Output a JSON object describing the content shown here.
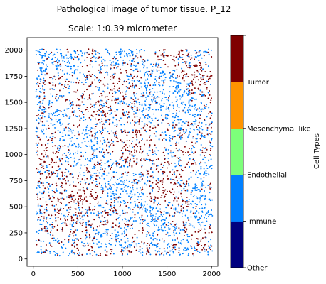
{
  "chart_data": {
    "type": "scatter",
    "title": "Pathological image of tumor tissue. P_12",
    "subtitle": "Scale: 1:0.39 micrometer",
    "xlim": [
      -70,
      2070
    ],
    "ylim": [
      2120,
      -70
    ],
    "y_inverted": true,
    "x_ticks": [
      0,
      500,
      1000,
      1500,
      2000
    ],
    "y_ticks": [
      0,
      250,
      500,
      750,
      1000,
      1250,
      1500,
      1750,
      2000
    ],
    "x_tick_labels": [
      "0",
      "500",
      "1000",
      "1500",
      "2000"
    ],
    "y_tick_labels": [
      "0",
      "250",
      "500",
      "750",
      "1000",
      "1250",
      "1500",
      "1750",
      "2000"
    ],
    "grid": false,
    "point_extent": {
      "x": [
        30,
        2010
      ],
      "y": [
        30,
        2010
      ]
    },
    "series_summary": [
      {
        "category": "Tumor",
        "color": "#7f0000",
        "approx_count": 3400
      },
      {
        "category": "Immune",
        "color": "#0080ff",
        "approx_count": 3700
      }
    ],
    "dense_regions": [
      {
        "category": "Immune",
        "x_range": [
          1200,
          1750
        ],
        "y_range": [
          1300,
          1700
        ]
      },
      {
        "category": "Immune",
        "x_range": [
          1750,
          2000
        ],
        "y_range": [
          300,
          900
        ]
      },
      {
        "category": "Immune",
        "x_range": [
          50,
          600
        ],
        "y_range": [
          1750,
          2000
        ]
      },
      {
        "category": "Immune",
        "x_range": [
          700,
          1100
        ],
        "y_range": [
          100,
          300
        ]
      }
    ],
    "colorbar": {
      "label": "Cell Types",
      "categories": [
        "Other",
        "Immune",
        "Endothelial",
        "Mesenchymal-like",
        "Tumor"
      ],
      "colors": [
        "#00007f",
        "#0080ff",
        "#7dff7a",
        "#ff9400",
        "#7f0000"
      ],
      "tick_labels": [
        "Other",
        "Immune",
        "Endothelial",
        "Mesenchymal-like",
        "Tumor"
      ]
    }
  }
}
